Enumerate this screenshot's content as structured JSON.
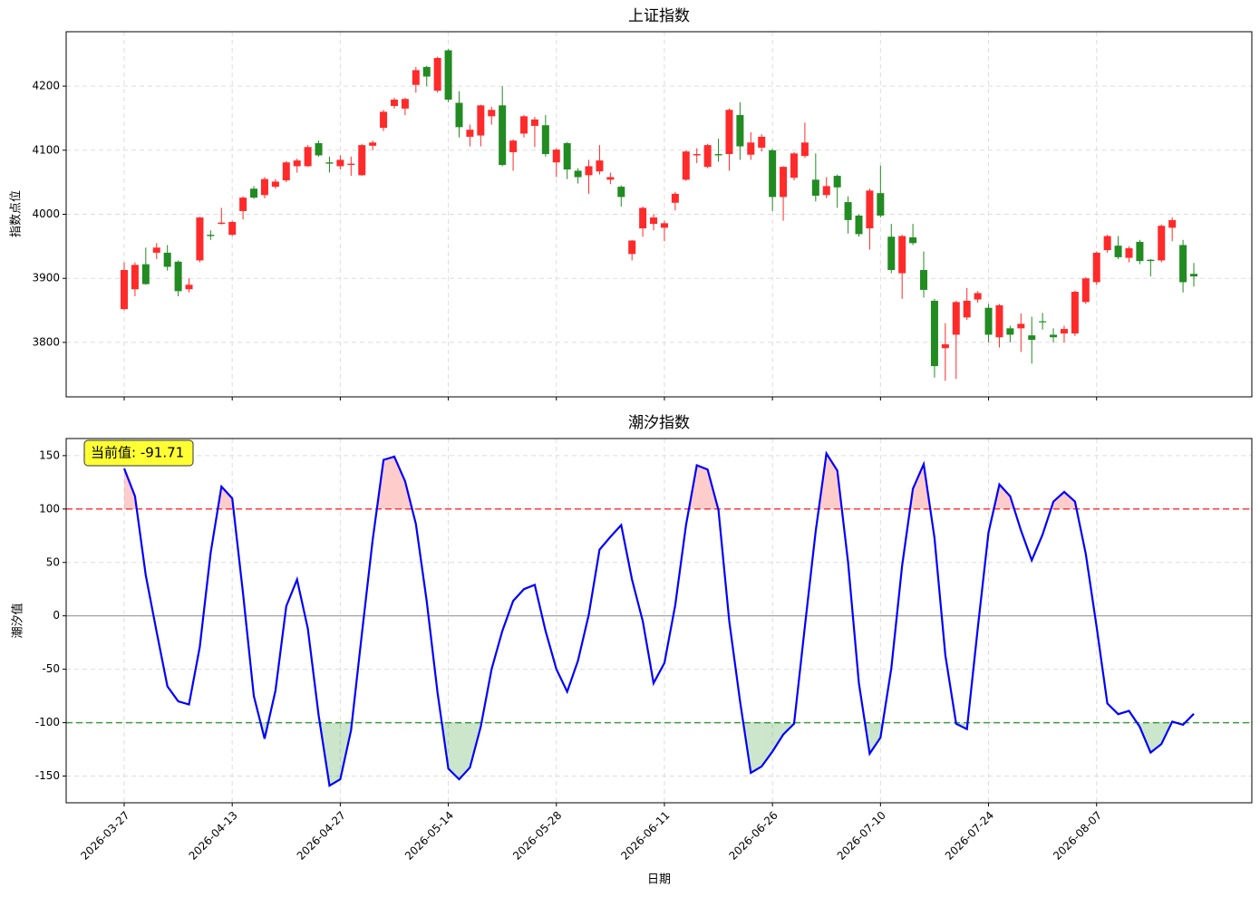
{
  "chart_data": [
    {
      "type": "candlestick",
      "title": "上证指数",
      "ylabel": "指数点位",
      "up_color": "#ff2a2a",
      "down_color": "#228b22",
      "open": [
        3852,
        3883,
        3922,
        3940,
        3940,
        3926,
        3883,
        3928,
        3968,
        3985,
        3968,
        4005,
        4040,
        4030,
        4043,
        4053,
        4075,
        4075,
        4111,
        4081,
        4075,
        4077,
        4061,
        4107,
        4135,
        4169,
        4165,
        4202,
        4230,
        4193,
        4256,
        4174,
        4121,
        4123,
        4153,
        4170,
        4097,
        4126,
        4138,
        4139,
        4081,
        4111,
        4068,
        4061,
        4067,
        4054,
        4043,
        3938,
        3978,
        3985,
        3979,
        4018,
        4054,
        4092,
        4074,
        4094,
        4094,
        4155,
        4093,
        4104,
        4100,
        4027,
        4057,
        4091,
        4054,
        4030,
        4060,
        4019,
        3998,
        3978,
        4033,
        3965,
        3908,
        3964,
        3913,
        3865,
        3791,
        3812,
        3839,
        3867,
        3854,
        3808,
        3822,
        3822,
        3811,
        3833,
        3812,
        3814,
        3814,
        3863,
        3894,
        3944,
        3951,
        3932,
        3957,
        3929,
        3928,
        3979,
        3952,
        3907
      ],
      "high": [
        3925,
        3925,
        3948,
        3955,
        3952,
        3928,
        3900,
        3996,
        3975,
        4010,
        3990,
        4028,
        4044,
        4058,
        4055,
        4083,
        4087,
        4108,
        4115,
        4090,
        4092,
        4090,
        4110,
        4115,
        4163,
        4182,
        4182,
        4230,
        4232,
        4246,
        4258,
        4192,
        4140,
        4171,
        4168,
        4200,
        4117,
        4155,
        4152,
        4155,
        4103,
        4113,
        4072,
        4085,
        4108,
        4065,
        4045,
        3960,
        4012,
        4000,
        3990,
        4035,
        4100,
        4103,
        4110,
        4118,
        4165,
        4175,
        4128,
        4125,
        4102,
        4075,
        4097,
        4143,
        4095,
        4058,
        4062,
        4028,
        4000,
        4040,
        4076,
        3985,
        3968,
        3985,
        3942,
        3868,
        3830,
        3865,
        3885,
        3880,
        3860,
        3860,
        3826,
        3845,
        3840,
        3846,
        3822,
        3826,
        3881,
        3902,
        3942,
        3968,
        3966,
        3950,
        3960,
        3930,
        3984,
        3995,
        3960,
        3924
      ],
      "low": [
        3850,
        3872,
        3890,
        3930,
        3912,
        3872,
        3878,
        3925,
        3960,
        3984,
        3966,
        3992,
        4024,
        4025,
        4040,
        4050,
        4065,
        4074,
        4090,
        4065,
        4070,
        4060,
        4060,
        4100,
        4130,
        4165,
        4155,
        4190,
        4200,
        4190,
        4175,
        4120,
        4106,
        4106,
        4140,
        4075,
        4068,
        4120,
        4105,
        4090,
        4058,
        4055,
        4048,
        4032,
        4062,
        4047,
        4012,
        3928,
        3965,
        3975,
        3958,
        4006,
        4052,
        4080,
        4072,
        4082,
        4068,
        4085,
        4085,
        4098,
        4005,
        3990,
        4053,
        4088,
        4020,
        4025,
        4010,
        3970,
        3965,
        3945,
        3995,
        3908,
        3868,
        3952,
        3870,
        3745,
        3740,
        3743,
        3835,
        3862,
        3800,
        3792,
        3800,
        3785,
        3767,
        3820,
        3800,
        3800,
        3810,
        3860,
        3890,
        3940,
        3930,
        3925,
        3922,
        3903,
        3925,
        3958,
        3878,
        3887
      ],
      "close": [
        3913,
        3921,
        3891,
        3948,
        3918,
        3880,
        3890,
        3995,
        3966,
        3987,
        3988,
        4026,
        4026,
        4055,
        4051,
        4081,
        4084,
        4105,
        4092,
        4079,
        4085,
        4079,
        4108,
        4112,
        4160,
        4179,
        4180,
        4225,
        4215,
        4244,
        4179,
        4136,
        4132,
        4170,
        4163,
        4077,
        4115,
        4153,
        4148,
        4094,
        4101,
        4070,
        4058,
        4075,
        4084,
        4058,
        4027,
        3959,
        4010,
        3995,
        3986,
        4032,
        4098,
        4094,
        4108,
        4092,
        4163,
        4106,
        4112,
        4121,
        4027,
        4074,
        4095,
        4112,
        4029,
        4044,
        4042,
        3991,
        3969,
        4037,
        3998,
        3913,
        3966,
        3955,
        3882,
        3763,
        3797,
        3863,
        3865,
        3877,
        3812,
        3858,
        3812,
        3829,
        3804,
        3832,
        3808,
        3821,
        3879,
        3900,
        3940,
        3966,
        3933,
        3947,
        3927,
        3927,
        3982,
        3991,
        3894,
        3903
      ],
      "ylim": [
        3715,
        4285
      ],
      "yticks": [
        3800,
        3900,
        4000,
        4100,
        4200
      ],
      "grid": true
    },
    {
      "type": "line",
      "title": "潮汐指数",
      "xlabel": "日期",
      "ylabel": "潮汐值",
      "color": "#0000ff",
      "categories": [
        "2026-03-27",
        null,
        null,
        null,
        null,
        null,
        null,
        null,
        null,
        null,
        "2026-04-13",
        null,
        null,
        null,
        null,
        null,
        null,
        null,
        null,
        null,
        "2026-04-27",
        null,
        null,
        null,
        null,
        null,
        null,
        null,
        null,
        null,
        "2026-05-14",
        null,
        null,
        null,
        null,
        null,
        null,
        null,
        null,
        null,
        "2026-05-28",
        null,
        null,
        null,
        null,
        null,
        null,
        null,
        null,
        null,
        "2026-06-11",
        null,
        null,
        null,
        null,
        null,
        null,
        null,
        null,
        null,
        "2026-06-26",
        null,
        null,
        null,
        null,
        null,
        null,
        null,
        null,
        null,
        "2026-07-10",
        null,
        null,
        null,
        null,
        null,
        null,
        null,
        null,
        null,
        "2026-07-24",
        null,
        null,
        null,
        null,
        null,
        null,
        null,
        null,
        null,
        "2026-08-07",
        null,
        null,
        null,
        null,
        null,
        null,
        null,
        null,
        null
      ],
      "values": [
        138,
        112,
        38,
        -15,
        -66,
        -80,
        -83,
        -29,
        59,
        121,
        110,
        21,
        -75,
        -115,
        -70,
        9,
        34,
        -12,
        -93,
        -159,
        -153,
        -107,
        -17,
        71,
        146,
        149,
        126,
        86,
        14,
        -72,
        -143,
        -153,
        -142,
        -104,
        -50,
        -14,
        14,
        25,
        29,
        -14,
        -50,
        -71,
        -42,
        1,
        62,
        74,
        85,
        34,
        -5,
        -63,
        -44,
        10,
        85,
        141,
        137,
        99,
        -5,
        -80,
        -147,
        -141,
        -127,
        -111,
        -101,
        -10,
        79,
        152,
        136,
        50,
        -63,
        -129,
        -114,
        -49,
        47,
        119,
        142,
        73,
        -37,
        -101,
        -106,
        -12,
        78,
        123,
        112,
        80,
        52,
        76,
        107,
        116,
        107,
        58,
        -10,
        -82,
        -92,
        -89,
        -104,
        -128,
        -120,
        -99,
        -102,
        -91.71
      ],
      "thresholds": [
        {
          "value": 100,
          "color": "#ff0000"
        },
        {
          "value": -100,
          "color": "#008000"
        }
      ],
      "annotation": "当前值: -91.71",
      "ylim": [
        -175,
        166
      ],
      "yticks": [
        150,
        100,
        50,
        0,
        -50,
        -100,
        -150
      ],
      "grid": true
    }
  ]
}
